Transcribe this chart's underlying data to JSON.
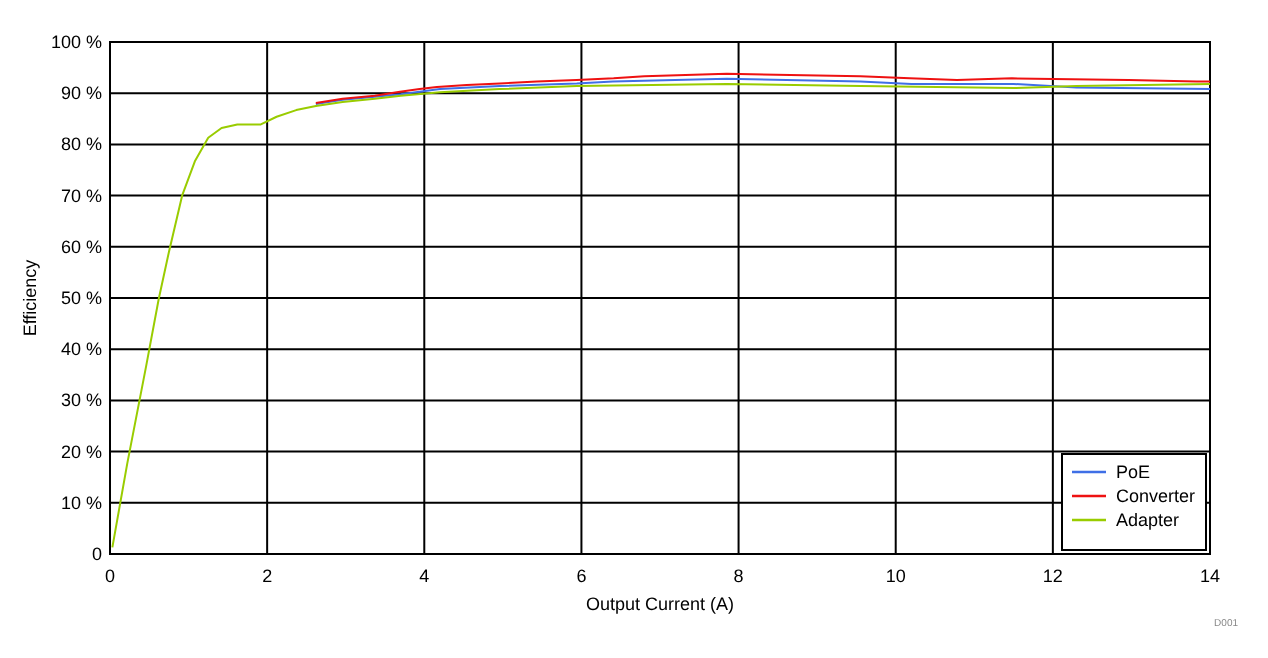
{
  "chart_data": {
    "type": "line",
    "xlabel": "Output Current (A)",
    "ylabel": "Efficiency",
    "xlim": [
      0,
      14
    ],
    "xticks": [
      0,
      2,
      4,
      6,
      8,
      10,
      12,
      14
    ],
    "ylim": [
      0,
      100
    ],
    "yticks": [
      0,
      {
        "value": 10,
        "label": "10 %"
      },
      {
        "value": 20,
        "label": "20 %"
      },
      {
        "value": 30,
        "label": "30 %"
      },
      {
        "value": 40,
        "label": "40 %"
      },
      {
        "value": 50,
        "label": "50 %"
      },
      {
        "value": 60,
        "label": "60 %"
      },
      {
        "value": 70,
        "label": "70 %"
      },
      {
        "value": 80,
        "label": "80 %"
      },
      {
        "value": 90,
        "label": "90 %"
      },
      {
        "value": 100,
        "label": "100 %"
      }
    ],
    "grid": true,
    "legend": "bottom right",
    "annotations": [
      "D001"
    ],
    "series": [
      {
        "name": "PoE",
        "color": "#3f6fe6",
        "x": [
          2.62,
          2.96,
          3.37,
          3.7,
          4.2,
          4.96,
          5.94,
          6.4,
          7.85,
          9.55,
          10.2,
          11.5,
          12.3,
          14
        ],
        "values": [
          87.9,
          88.7,
          89.3,
          89.8,
          90.8,
          91.4,
          91.9,
          92.3,
          92.8,
          92.3,
          91.8,
          91.8,
          91.1,
          90.8
        ]
      },
      {
        "name": "Converter",
        "color": "#ee1111",
        "x": [
          2.62,
          2.96,
          3.37,
          3.69,
          3.94,
          4.16,
          4.54,
          4.96,
          5.43,
          5.94,
          6.41,
          6.8,
          7.85,
          9.55,
          10.18,
          10.78,
          11.48,
          12.96,
          13.83,
          14
        ],
        "values": [
          88.1,
          88.9,
          89.5,
          90.3,
          90.8,
          91.2,
          91.6,
          91.9,
          92.3,
          92.6,
          92.9,
          93.3,
          93.8,
          93.3,
          92.9,
          92.6,
          92.9,
          92.6,
          92.3,
          92.3
        ]
      },
      {
        "name": "Adapter",
        "color": "#99cc00",
        "x": [
          0.03,
          0.22,
          0.46,
          0.62,
          0.75,
          0.92,
          1.08,
          1.25,
          1.42,
          1.62,
          1.92,
          2.12,
          2.37,
          2.62,
          2.96,
          3.37,
          3.7,
          4.2,
          4.96,
          5.94,
          7.85,
          9.55,
          11.5,
          12.3,
          14
        ],
        "values": [
          1.3,
          17.7,
          36.7,
          49.8,
          59,
          70.1,
          76.7,
          81.3,
          83.2,
          83.9,
          83.9,
          85.4,
          86.7,
          87.5,
          88.3,
          88.9,
          89.5,
          90.2,
          90.8,
          91.4,
          91.8,
          91.4,
          91,
          91.4,
          91.8
        ]
      }
    ]
  }
}
